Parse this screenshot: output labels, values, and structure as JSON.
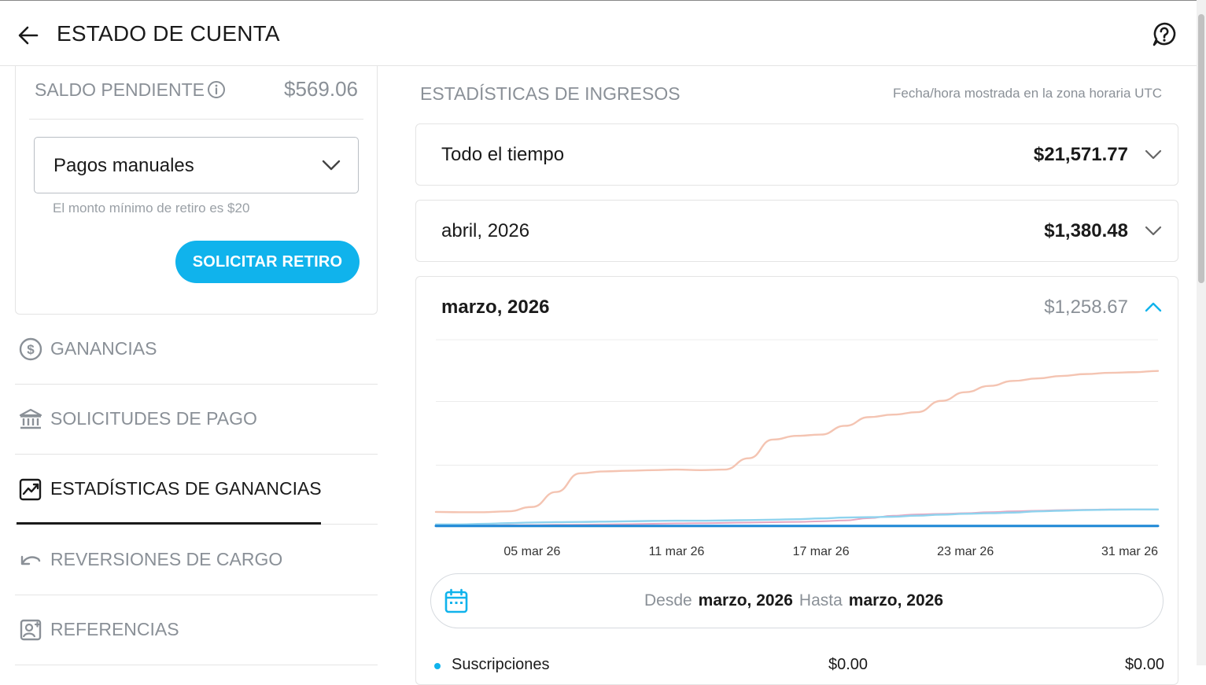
{
  "header": {
    "title": "ESTADO DE CUENTA"
  },
  "balance": {
    "label": "SALDO PENDIENTE",
    "amount": "$569.06",
    "payment_method": "Pagos manuales",
    "hint": "El monto mínimo de retiro es $20",
    "withdraw_label": "SOLICITAR RETIRO"
  },
  "nav": {
    "items": [
      {
        "label": "GANANCIAS",
        "icon": "dollar-circle-icon",
        "active": false
      },
      {
        "label": "SOLICITUDES DE PAGO",
        "icon": "bank-icon",
        "active": false
      },
      {
        "label": "ESTADÍSTICAS DE GANANCIAS",
        "icon": "chart-icon",
        "active": true
      },
      {
        "label": "REVERSIONES DE CARGO",
        "icon": "undo-icon",
        "active": false
      },
      {
        "label": "REFERENCIAS",
        "icon": "referral-icon",
        "active": false
      }
    ]
  },
  "stats": {
    "title": "ESTADÍSTICAS DE INGRESOS",
    "timezone_note": "Fecha/hora mostrada en la zona horaria UTC",
    "periods": [
      {
        "label": "Todo el tiempo",
        "amount": "$21,571.77",
        "expanded": false
      },
      {
        "label": "abril, 2026",
        "amount": "$1,380.48",
        "expanded": false
      },
      {
        "label": "marzo, 2026",
        "amount": "$1,258.67",
        "expanded": true
      }
    ],
    "range": {
      "from_label": "Desde",
      "from_value": "marzo, 2026",
      "to_label": "Hasta",
      "to_value": "marzo, 2026"
    },
    "legend_row": {
      "name": "Suscripciones",
      "value1": "$0.00",
      "value2": "$0.00"
    }
  },
  "colors": {
    "accent": "#10b3ec",
    "muted_text": "#8a9097",
    "series_total": "#f4c4b2",
    "series_light_blue": "#8fd3ee",
    "series_pink": "#e6a6c0",
    "series_blue": "#1e88d6"
  },
  "chart_data": {
    "type": "line",
    "x": [
      "01 mar 26",
      "02 mar 26",
      "03 mar 26",
      "04 mar 26",
      "05 mar 26",
      "06 mar 26",
      "07 mar 26",
      "08 mar 26",
      "09 mar 26",
      "10 mar 26",
      "11 mar 26",
      "12 mar 26",
      "13 mar 26",
      "14 mar 26",
      "15 mar 26",
      "16 mar 26",
      "17 mar 26",
      "18 mar 26",
      "19 mar 26",
      "20 mar 26",
      "21 mar 26",
      "22 mar 26",
      "23 mar 26",
      "24 mar 26",
      "25 mar 26",
      "26 mar 26",
      "27 mar 26",
      "28 mar 26",
      "29 mar 26",
      "30 mar 26",
      "31 mar 26"
    ],
    "tick_labels": [
      "05 mar 26",
      "11 mar 26",
      "17 mar 26",
      "23 mar 26",
      "31 mar 26"
    ],
    "tick_indices": [
      4,
      10,
      16,
      22,
      30
    ],
    "ylim": [
      0,
      1500
    ],
    "grid": true,
    "legend": "none",
    "series": [
      {
        "values": [
          120,
          118,
          118,
          125,
          160,
          280,
          430,
          445,
          450,
          455,
          460,
          455,
          460,
          550,
          700,
          730,
          740,
          810,
          880,
          900,
          920,
          1010,
          1080,
          1130,
          1170,
          1190,
          1210,
          1225,
          1235,
          1240,
          1250
        ]
      },
      {
        "values": [
          20,
          20,
          25,
          30,
          35,
          38,
          40,
          42,
          45,
          48,
          50,
          50,
          52,
          55,
          58,
          62,
          68,
          75,
          78,
          82,
          90,
          98,
          105,
          110,
          115,
          125,
          130,
          135,
          138,
          140,
          140
        ]
      },
      {
        "values": [
          12,
          12,
          12,
          14,
          15,
          17,
          18,
          20,
          22,
          25,
          28,
          30,
          32,
          35,
          38,
          40,
          45,
          52,
          70,
          90,
          100,
          105,
          110,
          118,
          125,
          130,
          135,
          138,
          140,
          140,
          140
        ]
      },
      {
        "values": [
          8,
          8,
          8,
          8,
          8,
          8,
          8,
          8,
          8,
          8,
          8,
          8,
          8,
          8,
          8,
          8,
          8,
          8,
          8,
          8,
          8,
          8,
          8,
          8,
          8,
          8,
          8,
          8,
          8,
          8,
          8
        ]
      }
    ]
  }
}
